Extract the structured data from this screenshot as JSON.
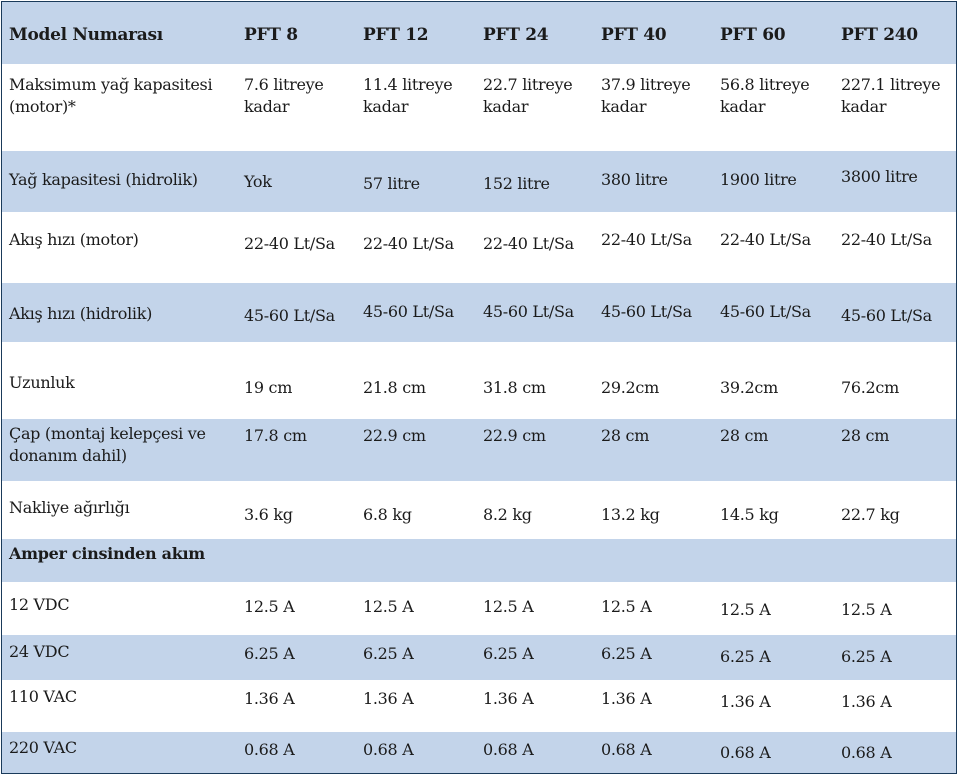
{
  "table": {
    "header": [
      "Model Numarası",
      "PFT 8",
      "PFT 12",
      "PFT 24",
      "PFT 40",
      "PFT 60",
      "PFT 240"
    ],
    "rows": [
      {
        "label": "Maksimum yağ kapasitesi (motor)*",
        "values": [
          "7.6 litreye kadar",
          "11.4 litreye kadar",
          "22.7 litreye kadar",
          "37.9 litreye kadar",
          "56.8 litreye kadar",
          "227.1 litreye kadar"
        ]
      },
      {
        "label": "Yağ kapasitesi (hidrolik)",
        "values": [
          "Yok",
          "57 litre",
          "152 litre",
          "380 litre",
          "1900 litre",
          "3800 litre"
        ]
      },
      {
        "label": "Akış hızı (motor)",
        "values": [
          "22-40 Lt/Sa",
          "22-40 Lt/Sa",
          "22-40 Lt/Sa",
          "22-40 Lt/Sa",
          "22-40 Lt/Sa",
          "22-40 Lt/Sa"
        ]
      },
      {
        "label": "Akış hızı (hidrolik)",
        "values": [
          "45-60 Lt/Sa",
          "45-60 Lt/Sa",
          "45-60 Lt/Sa",
          "45-60 Lt/Sa",
          "45-60 Lt/Sa",
          "45-60 Lt/Sa"
        ]
      },
      {
        "label": "Uzunluk",
        "values": [
          "19 cm",
          "21.8 cm",
          "31.8 cm",
          "29.2cm",
          "39.2cm",
          "76.2cm"
        ]
      },
      {
        "label": "Çap (montaj kelepçesi ve donanım dahil)",
        "values": [
          "17.8 cm",
          "22.9 cm",
          "22.9 cm",
          "28 cm",
          "28 cm",
          "28 cm"
        ]
      },
      {
        "label": "Nakliye ağırlığı",
        "values": [
          "3.6 kg",
          "6.8 kg",
          "8.2 kg",
          "13.2 kg",
          "14.5 kg",
          "22.7 kg"
        ]
      },
      {
        "label": "Amper cinsinden akım",
        "values": [
          "",
          "",
          "",
          "",
          "",
          ""
        ]
      },
      {
        "label": "12 VDC",
        "values": [
          "12.5 A",
          "12.5 A",
          "12.5 A",
          "12.5 A",
          "12.5 A",
          "12.5 A"
        ]
      },
      {
        "label": "24 VDC",
        "values": [
          "6.25 A",
          "6.25 A",
          "6.25 A",
          "6.25 A",
          "6.25 A",
          "6.25 A"
        ]
      },
      {
        "label": "110 VAC",
        "values": [
          "1.36 A",
          "1.36 A",
          "1.36 A",
          "1.36 A",
          "1.36 A",
          "1.36 A"
        ]
      },
      {
        "label": "220 VAC",
        "values": [
          "0.68 A",
          "0.68 A",
          "0.68 A",
          "0.68 A",
          "0.68 A",
          "0.68 A"
        ]
      }
    ]
  },
  "colors": {
    "row_shade": "#c3d4ea",
    "row_white": "#ffffff",
    "border": "#1a3a5a",
    "text": "#1b1b1b"
  }
}
